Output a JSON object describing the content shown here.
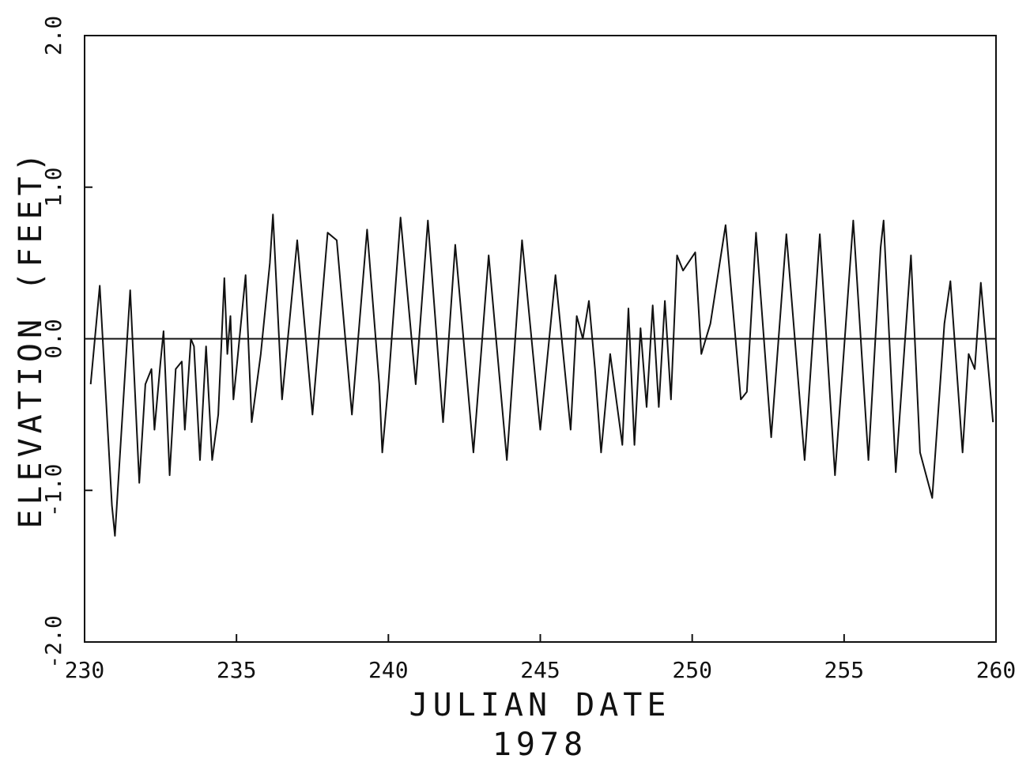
{
  "chart_data": {
    "type": "line",
    "title": "",
    "xlabel": "JULIAN DATE",
    "xlabel_sub": "1978",
    "ylabel": "ELEVATION (FEET)",
    "xlim": [
      230,
      260
    ],
    "ylim": [
      -2.0,
      2.0
    ],
    "x_ticks": [
      230,
      235,
      240,
      245,
      250,
      255,
      260
    ],
    "x_tick_labels": [
      "230",
      "235",
      "240",
      "245",
      "250",
      "255",
      "260"
    ],
    "y_ticks": [
      -2.0,
      -1.0,
      0.0,
      1.0,
      2.0
    ],
    "y_tick_labels": [
      "-2.0",
      "-1.0",
      "0.0",
      "1.0",
      "2.0"
    ],
    "grid": false,
    "reference_line": 0.0,
    "line_color": "#111111",
    "series": [
      {
        "x": [
          230.2,
          230.5,
          230.9,
          231.0,
          231.5,
          231.8,
          232.0,
          232.2,
          232.3,
          232.5,
          232.6,
          232.8,
          233.0,
          233.2,
          233.3,
          233.5,
          233.6,
          233.8,
          234.0,
          234.2,
          234.4,
          234.6,
          234.7,
          234.8,
          234.9,
          235.0,
          235.3,
          235.5,
          235.8,
          236.1,
          236.2,
          236.5,
          237.0,
          237.5,
          238.0,
          238.3,
          238.8,
          239.3,
          239.7,
          239.8,
          240.0,
          240.4,
          240.9,
          241.3,
          241.8,
          242.2,
          242.8,
          243.3,
          243.9,
          244.4,
          245.0,
          245.5,
          246.0,
          246.2,
          246.4,
          246.6,
          246.8,
          247.0,
          247.3,
          247.7,
          247.9,
          248.1,
          248.3,
          248.5,
          248.7,
          248.9,
          249.1,
          249.3,
          249.5,
          249.7,
          250.1,
          250.3,
          250.6,
          251.1,
          251.6,
          251.8,
          252.1,
          252.6,
          253.1,
          253.7,
          254.2,
          254.7,
          255.3,
          255.8,
          256.2,
          256.3,
          256.7,
          257.2,
          257.5,
          257.9,
          258.3,
          258.5,
          258.9,
          259.1,
          259.3,
          259.5,
          259.9
        ],
        "y": [
          -0.3,
          0.35,
          -1.1,
          -1.3,
          0.32,
          -0.95,
          -0.3,
          -0.2,
          -0.6,
          -0.15,
          0.05,
          -0.9,
          -0.2,
          -0.15,
          -0.6,
          0.0,
          -0.05,
          -0.8,
          -0.05,
          -0.8,
          -0.5,
          0.4,
          -0.1,
          0.15,
          -0.4,
          -0.2,
          0.42,
          -0.55,
          -0.1,
          0.5,
          0.82,
          -0.4,
          0.65,
          -0.5,
          0.7,
          0.65,
          -0.5,
          0.72,
          -0.3,
          -0.75,
          -0.3,
          0.8,
          -0.3,
          0.78,
          -0.55,
          0.62,
          -0.75,
          0.55,
          -0.8,
          0.65,
          -0.6,
          0.42,
          -0.6,
          0.15,
          0.0,
          0.25,
          -0.2,
          -0.75,
          -0.1,
          -0.7,
          0.2,
          -0.7,
          0.07,
          -0.45,
          0.22,
          -0.45,
          0.25,
          -0.4,
          0.55,
          0.45,
          0.57,
          -0.1,
          0.1,
          0.75,
          -0.4,
          -0.35,
          0.7,
          -0.65,
          0.69,
          -0.8,
          0.69,
          -0.9,
          0.78,
          -0.8,
          0.6,
          0.78,
          -0.88,
          0.55,
          -0.75,
          -1.05,
          0.1,
          0.38,
          -0.75,
          -0.1,
          -0.2,
          0.37,
          -0.55
        ]
      }
    ]
  }
}
